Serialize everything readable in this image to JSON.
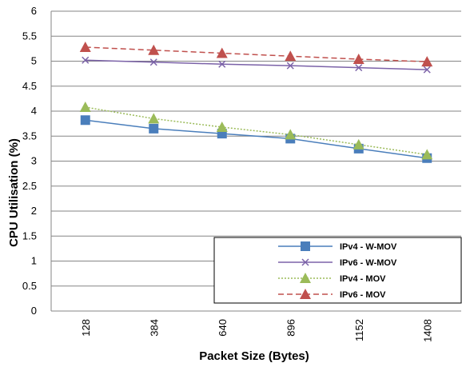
{
  "chart_data": {
    "type": "line",
    "title": "",
    "xlabel": "Packet Size (Bytes)",
    "ylabel": "CPU Utilisation (%)",
    "categories": [
      "128",
      "384",
      "640",
      "896",
      "1152",
      "1408"
    ],
    "ylim": [
      0,
      6
    ],
    "yticks": [
      "0",
      "0.5",
      "1",
      "1.5",
      "2",
      "2.5",
      "3",
      "3.5",
      "4",
      "4.5",
      "5",
      "5.5",
      "6"
    ],
    "grid": "horizontal",
    "legend_position": "bottom-right",
    "series": [
      {
        "name": "IPv4 - W-MOV",
        "color": "#4a7ebb",
        "marker": "square",
        "dash": "solid",
        "values": [
          3.82,
          3.65,
          3.55,
          3.45,
          3.25,
          3.06
        ]
      },
      {
        "name": "IPv6 - W-MOV",
        "color": "#7b62a8",
        "marker": "x",
        "dash": "solid",
        "values": [
          5.02,
          4.98,
          4.94,
          4.91,
          4.87,
          4.83
        ]
      },
      {
        "name": "IPv4 - MOV",
        "color": "#9bbb59",
        "marker": "triangle",
        "dash": "dotted",
        "values": [
          4.08,
          3.85,
          3.68,
          3.53,
          3.33,
          3.13
        ]
      },
      {
        "name": "IPv6 - MOV",
        "color": "#c0504d",
        "marker": "triangle",
        "dash": "dashed",
        "values": [
          5.28,
          5.22,
          5.16,
          5.1,
          5.04,
          4.99
        ]
      }
    ]
  }
}
